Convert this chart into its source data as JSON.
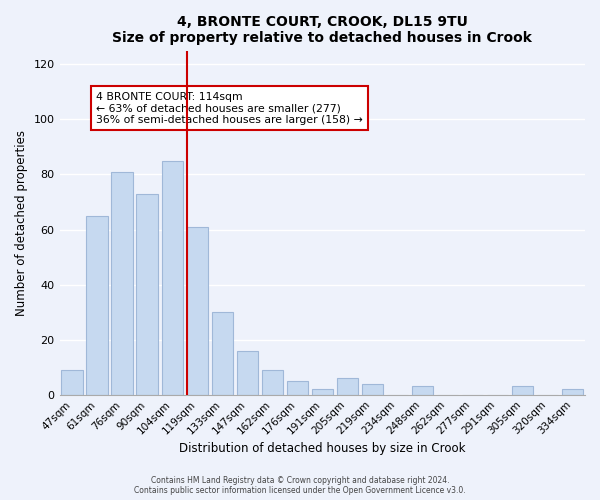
{
  "title": "4, BRONTE COURT, CROOK, DL15 9TU",
  "subtitle": "Size of property relative to detached houses in Crook",
  "xlabel": "Distribution of detached houses by size in Crook",
  "ylabel": "Number of detached properties",
  "bar_labels": [
    "47sqm",
    "61sqm",
    "76sqm",
    "90sqm",
    "104sqm",
    "119sqm",
    "133sqm",
    "147sqm",
    "162sqm",
    "176sqm",
    "191sqm",
    "205sqm",
    "219sqm",
    "234sqm",
    "248sqm",
    "262sqm",
    "277sqm",
    "291sqm",
    "305sqm",
    "320sqm",
    "334sqm"
  ],
  "bar_values": [
    9,
    65,
    81,
    73,
    85,
    61,
    30,
    16,
    9,
    5,
    2,
    6,
    4,
    0,
    3,
    0,
    0,
    0,
    3,
    0,
    2
  ],
  "bar_color": "#c6d9f0",
  "bar_edge_color": "#a0b8d8",
  "vline_x_index": 5,
  "vline_color": "#cc0000",
  "annotation_title": "4 BRONTE COURT: 114sqm",
  "annotation_line1": "← 63% of detached houses are smaller (277)",
  "annotation_line2": "36% of semi-detached houses are larger (158) →",
  "annotation_box_color": "#ffffff",
  "annotation_box_edge_color": "#cc0000",
  "ylim": [
    0,
    125
  ],
  "yticks": [
    0,
    20,
    40,
    60,
    80,
    100,
    120
  ],
  "footer1": "Contains HM Land Registry data © Crown copyright and database right 2024.",
  "footer2": "Contains public sector information licensed under the Open Government Licence v3.0.",
  "bg_color": "#eef2fb",
  "plot_bg_color": "#eef2fb"
}
